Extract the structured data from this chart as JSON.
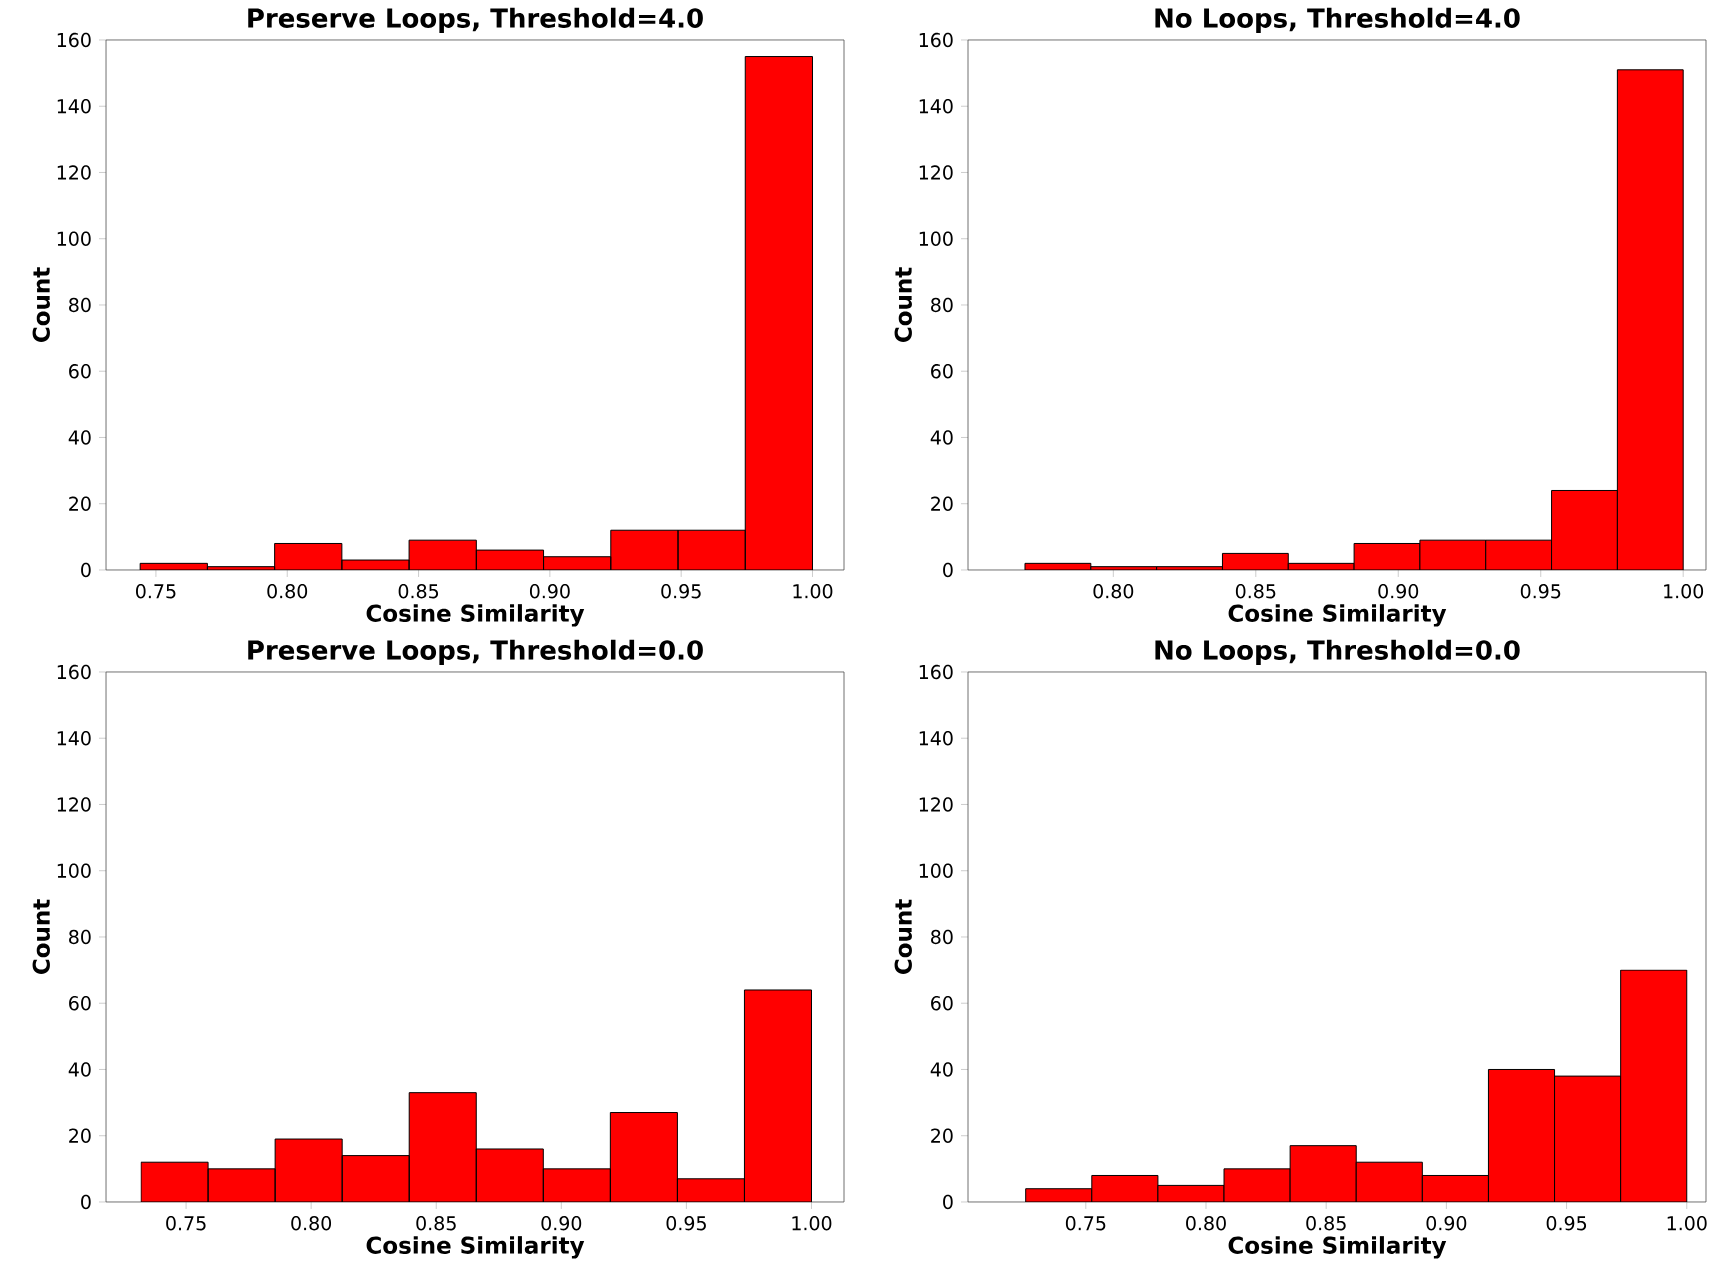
{
  "chart_data": [
    {
      "type": "histogram",
      "title": "Preserve Loops, Threshold=4.0",
      "xlabel": "Cosine Similarity",
      "ylabel": "Count",
      "color": "#ff0000",
      "bins": [
        0.744,
        0.7696,
        0.7952,
        0.8208,
        0.8464,
        0.872,
        0.8976,
        0.9232,
        0.9488,
        0.9744,
        1.0
      ],
      "values": [
        2,
        1,
        8,
        3,
        9,
        6,
        4,
        12,
        12,
        155
      ],
      "xlim": [
        0.731,
        1.012
      ],
      "ylim": [
        0,
        160
      ],
      "xticks": [
        {
          "value": 0.75,
          "label": "0.75"
        },
        {
          "value": 0.8,
          "label": "0.80"
        },
        {
          "value": 0.85,
          "label": "0.85"
        },
        {
          "value": 0.9,
          "label": "0.90"
        },
        {
          "value": 0.95,
          "label": "0.95"
        },
        {
          "value": 1.0,
          "label": "1.00"
        }
      ],
      "yticks": [
        0,
        20,
        40,
        60,
        80,
        100,
        120,
        140,
        160
      ]
    },
    {
      "type": "histogram",
      "title": "No Loops, Threshold=4.0",
      "xlabel": "Cosine Similarity",
      "ylabel": "Count",
      "color": "#ff0000",
      "bins": [
        0.769,
        0.7921,
        0.8152,
        0.8383,
        0.8614,
        0.8845,
        0.9076,
        0.9307,
        0.9538,
        0.9769,
        1.0
      ],
      "values": [
        2,
        1,
        1,
        5,
        2,
        8,
        9,
        9,
        24,
        151
      ],
      "xlim": [
        0.749,
        1.008
      ],
      "ylim": [
        0,
        160
      ],
      "xticks": [
        {
          "value": 0.8,
          "label": "0.80"
        },
        {
          "value": 0.85,
          "label": "0.85"
        },
        {
          "value": 0.9,
          "label": "0.90"
        },
        {
          "value": 0.95,
          "label": "0.95"
        },
        {
          "value": 1.0,
          "label": "1.00"
        }
      ],
      "yticks": [
        0,
        20,
        40,
        60,
        80,
        100,
        120,
        140,
        160
      ]
    },
    {
      "type": "histogram",
      "title": "Preserve Loops, Threshold=0.0",
      "xlabel": "Cosine Similarity",
      "ylabel": "Count",
      "color": "#ff0000",
      "bins": [
        0.732,
        0.7588,
        0.7856,
        0.8124,
        0.8392,
        0.866,
        0.8928,
        0.9196,
        0.9464,
        0.9732,
        1.0
      ],
      "values": [
        12,
        10,
        19,
        14,
        33,
        16,
        10,
        27,
        7,
        64
      ],
      "xlim": [
        0.718,
        1.013
      ],
      "ylim": [
        0,
        160
      ],
      "xticks": [
        {
          "value": 0.75,
          "label": "0.75"
        },
        {
          "value": 0.8,
          "label": "0.80"
        },
        {
          "value": 0.85,
          "label": "0.85"
        },
        {
          "value": 0.9,
          "label": "0.90"
        },
        {
          "value": 0.95,
          "label": "0.95"
        },
        {
          "value": 1.0,
          "label": "1.00"
        }
      ],
      "yticks": [
        0,
        20,
        40,
        60,
        80,
        100,
        120,
        140,
        160
      ]
    },
    {
      "type": "histogram",
      "title": "No Loops, Threshold=0.0",
      "xlabel": "Cosine Similarity",
      "ylabel": "Count",
      "color": "#ff0000",
      "bins": [
        0.725,
        0.7525,
        0.78,
        0.8075,
        0.835,
        0.8625,
        0.89,
        0.9175,
        0.945,
        0.9725,
        1.0
      ],
      "values": [
        4,
        8,
        5,
        10,
        17,
        12,
        8,
        40,
        38,
        70
      ],
      "xlim": [
        0.701,
        1.008
      ],
      "ylim": [
        0,
        160
      ],
      "xticks": [
        {
          "value": 0.75,
          "label": "0.75"
        },
        {
          "value": 0.8,
          "label": "0.80"
        },
        {
          "value": 0.85,
          "label": "0.85"
        },
        {
          "value": 0.9,
          "label": "0.90"
        },
        {
          "value": 0.95,
          "label": "0.95"
        },
        {
          "value": 1.0,
          "label": "1.00"
        }
      ],
      "yticks": [
        0,
        20,
        40,
        60,
        80,
        100,
        120,
        140,
        160
      ]
    }
  ]
}
